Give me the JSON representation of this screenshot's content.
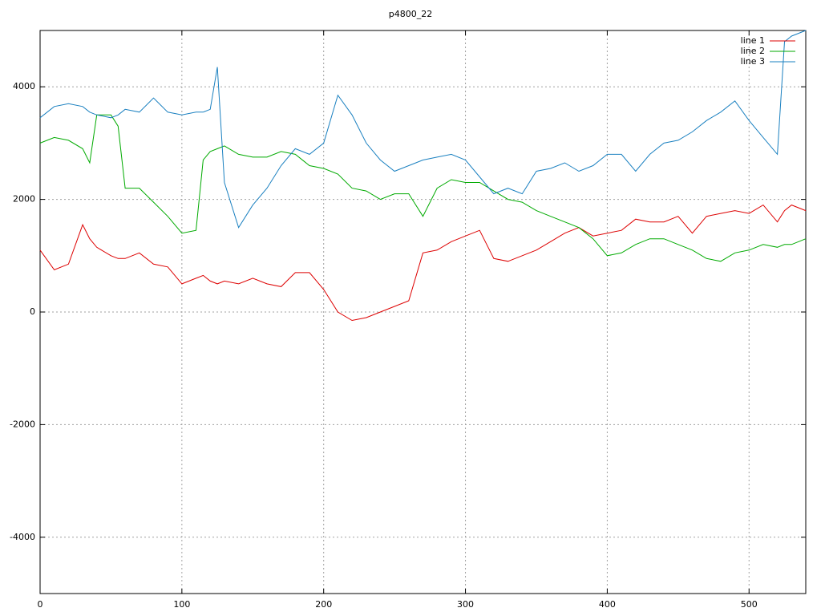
{
  "chart_data": {
    "type": "line",
    "title": "p4800_22",
    "x": [
      0,
      10,
      20,
      30,
      35,
      40,
      50,
      55,
      60,
      70,
      80,
      90,
      100,
      110,
      115,
      120,
      125,
      130,
      140,
      150,
      160,
      170,
      180,
      190,
      200,
      210,
      220,
      230,
      240,
      250,
      260,
      270,
      280,
      290,
      300,
      310,
      320,
      330,
      340,
      350,
      360,
      370,
      380,
      390,
      400,
      410,
      420,
      430,
      440,
      450,
      460,
      470,
      480,
      490,
      500,
      510,
      520,
      525,
      530,
      540
    ],
    "series": [
      {
        "name": "line 1",
        "color": "#dd0000",
        "values": [
          1100,
          750,
          850,
          1550,
          1300,
          1150,
          1000,
          950,
          950,
          1050,
          850,
          800,
          500,
          600,
          650,
          550,
          500,
          550,
          500,
          600,
          500,
          450,
          700,
          700,
          400,
          0,
          -150,
          -100,
          0,
          100,
          200,
          1050,
          1100,
          1250,
          1350,
          1450,
          950,
          900,
          1000,
          1100,
          1250,
          1400,
          1500,
          1350,
          1400,
          1450,
          1650,
          1600,
          1600,
          1700,
          1400,
          1700,
          1750,
          1800,
          1750,
          1900,
          1600,
          1800,
          1900,
          1800
        ]
      },
      {
        "name": "line 2",
        "color": "#00aa00",
        "values": [
          3000,
          3100,
          3050,
          2900,
          2650,
          3500,
          3500,
          3300,
          2200,
          2200,
          1950,
          1700,
          1400,
          1450,
          2700,
          2850,
          2900,
          2950,
          2800,
          2750,
          2750,
          2850,
          2800,
          2600,
          2550,
          2450,
          2200,
          2150,
          2000,
          2100,
          2100,
          1700,
          2200,
          2350,
          2300,
          2300,
          2150,
          2000,
          1950,
          1800,
          1700,
          1600,
          1500,
          1300,
          1000,
          1050,
          1200,
          1300,
          1300,
          1200,
          1100,
          950,
          900,
          1050,
          1100,
          1200,
          1150,
          1200,
          1200,
          1300
        ]
      },
      {
        "name": "line 3",
        "color": "#1a80c0",
        "values": [
          3450,
          3650,
          3700,
          3650,
          3550,
          3500,
          3450,
          3500,
          3600,
          3550,
          3800,
          3550,
          3500,
          3550,
          3550,
          3600,
          4350,
          2300,
          1500,
          1900,
          2200,
          2600,
          2900,
          2800,
          3000,
          3850,
          3500,
          3000,
          2700,
          2500,
          2600,
          2700,
          2750,
          2800,
          2700,
          2400,
          2100,
          2200,
          2100,
          2500,
          2550,
          2650,
          2500,
          2600,
          2800,
          2800,
          2500,
          2800,
          3000,
          3050,
          3200,
          3400,
          3550,
          3750,
          3400,
          3100,
          2800,
          4800,
          4900,
          5000
        ]
      }
    ],
    "xlim": [
      0,
      540
    ],
    "xticks": [
      0,
      100,
      200,
      300,
      400,
      500
    ],
    "ylim": [
      -5000,
      5000
    ],
    "yticks": [
      -4000,
      -2000,
      0,
      2000,
      4000
    ],
    "grid": true,
    "legend": "top-right"
  }
}
